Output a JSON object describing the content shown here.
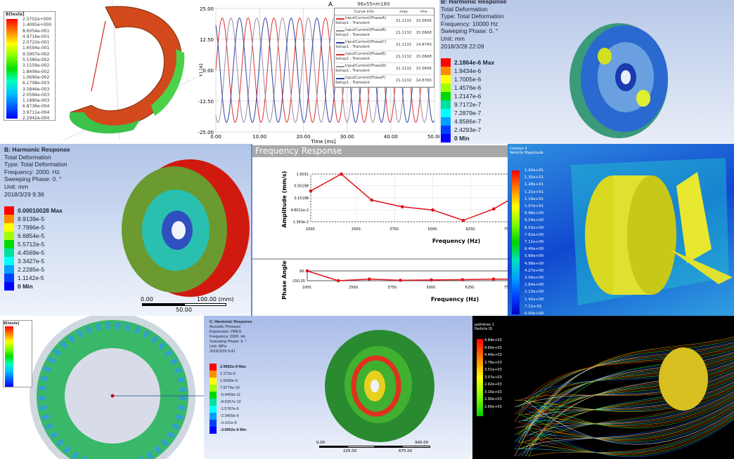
{
  "panel_magnetic": {
    "legend_title": "B[tesla]",
    "legend_values": [
      "2.5702e+000",
      "1.4095e+000",
      "8.6054e-001",
      "4.9716e-001",
      "2.0722e-001",
      "1.6594e-001",
      "9.5907e-002",
      "5.5385e-002",
      "3.1559e-002",
      "1.8406e-002",
      "1.0690e-002",
      "6.1708e-003",
      "3.5846e-003",
      "2.0594e-003",
      "1.1890e-003",
      "6.8736e-004",
      "3.9711e-004",
      "2.2942e-004"
    ]
  },
  "panel_current": {
    "title": "A",
    "project_label": "96v55nm180",
    "ylabel": "Y1 [A]",
    "xlabel": "Time [ms]",
    "table_headers": [
      "Curve Info",
      "max",
      "rms"
    ],
    "table_rows": [
      {
        "name": "InputCurrent(PhaseA)",
        "setup": "Setup1 : Transient",
        "max": "21.1132",
        "rms": "15.0606",
        "color": "#e03030"
      },
      {
        "name": "InputCurrent(PhaseB)",
        "setup": "Setup1 : Transient",
        "max": "21.1132",
        "rms": "15.0668",
        "color": "#9a8aa0"
      },
      {
        "name": "InputCurrent(PhaseC)",
        "setup": "Setup1 : Transient",
        "max": "21.1132",
        "rms": "14.8760",
        "color": "#3040a0"
      },
      {
        "name": "InputCurrent(PhaseE)",
        "setup": "Setup1 : Transient",
        "max": "21.1132",
        "rms": "15.0668",
        "color": "#e03030"
      },
      {
        "name": "InputCurrent(PhaseD)",
        "setup": "Setup1 : Transient",
        "max": "21.1132",
        "rms": "15.0606",
        "color": "#9a8aa0"
      },
      {
        "name": "InputCurrent(PhaseF)",
        "setup": "Setup1 : Transient",
        "max": "21.1132",
        "rms": "14.8760",
        "color": "#3040a0"
      }
    ]
  },
  "panel_harmonic_10k": {
    "lines": [
      "B: Harmonic Response",
      "Total Deformation",
      "Type: Total Deformation",
      "Frequency: 10000 Hz",
      "Sweeping Phase: 0. °",
      "Unit: mm",
      "2018/3/28 22:09"
    ],
    "legend_values": [
      "2.1864e-6 Max",
      "1.9434e-6",
      "1.7005e-6",
      "1.4576e-6",
      "1.2147e-6",
      "9.7172e-7",
      "7.2879e-7",
      "4.8586e-7",
      "2.4293e-7",
      "0 Min"
    ]
  },
  "panel_harmonic_2k": {
    "lines": [
      "B: Harmonic Response",
      "Total Deformation",
      "Type: Total Deformation",
      "Frequency: 2000. Hz",
      "Sweeping Phase: 0. °",
      "Unit: mm",
      "2018/3/29 9:36"
    ],
    "legend_values": [
      "0.00010028 Max",
      "8.9139e-5",
      "7.7996e-5",
      "6.6854e-5",
      "5.5712e-5",
      "4.4569e-5",
      "3.3427e-5",
      "2.2285e-5",
      "1.1142e-5",
      "0 Min"
    ],
    "scale": [
      "0.00",
      "100.00 (mm)",
      "50.00"
    ]
  },
  "panel_cfd": {
    "legend_title": [
      "Contour 2",
      "Velocity Magnitude"
    ],
    "legend_values": [
      "1.42e+01",
      "1.35e+01",
      "1.28e+01",
      "1.21e+01",
      "1.14e+01",
      "1.07e+01",
      "9.96e+00",
      "9.24e+00",
      "8.53e+00",
      "7.82e+00",
      "7.11e+00",
      "6.40e+00",
      "5.69e+00",
      "4.98e+00",
      "4.27e+00",
      "3.56e+00",
      "2.84e+00",
      "2.13e+00",
      "1.42e+00",
      "7.11e-01",
      "0.00e+00"
    ]
  },
  "panel_ring": {
    "legend_title": "B[tesla]"
  },
  "panel_acoustic": {
    "lines": [
      "C: Harmonic Response",
      "Acoustic Pressure",
      "Expression: PRES",
      "Frequency: 2000. Hz",
      "Sweeping Phase: 0. °",
      "Unit: MPa",
      "2018/3/29 9:41"
    ],
    "legend_values": [
      "2.9962e-9 Max",
      "2.272e-9",
      "1.6690e-9",
      "7.8774e-10",
      "-5.4459e-11",
      "-8.9357e-10",
      "-1.5787e-9",
      "-2.3409e-9",
      "-3.101e-9",
      "-3.9952e-9 Min"
    ],
    "scale": [
      "0.00",
      "900.00 (mm)",
      "225.00",
      "675.00"
    ]
  },
  "panel_streamlines": {
    "legend_title": [
      "pathlines 1",
      "Particle ID"
    ],
    "legend_values": [
      "4.84e+03",
      "4.60e+03",
      "4.40e+03",
      "3.76e+03",
      "3.51e+03",
      "3.07e+03",
      "2.42e+03",
      "3.16e+03",
      "2.90e+03",
      "2.60e+03"
    ]
  },
  "chart_data": [
    {
      "type": "line",
      "title": "A",
      "xlabel": "Time [ms]",
      "ylabel": "Y1 [A]",
      "xlim": [
        0,
        50
      ],
      "ylim": [
        -25,
        25
      ],
      "xticks": [
        "0.00",
        "10.00",
        "20.00",
        "30.00",
        "40.00",
        "50.00"
      ],
      "yticks": [
        "25.00",
        "12.50",
        "0.00",
        "-12.50",
        "-25.00"
      ],
      "amplitude": 21.1132,
      "period_ms": 5.9,
      "series": [
        {
          "name": "InputCurrent(PhaseA)",
          "phase_deg": 0,
          "color": "#e03030"
        },
        {
          "name": "InputCurrent(PhaseB)",
          "phase_deg": 120,
          "color": "#9a8aa0"
        },
        {
          "name": "InputCurrent(PhaseC)",
          "phase_deg": 240,
          "color": "#3040a0"
        }
      ],
      "grid": true,
      "legend": "top-right"
    },
    {
      "type": "line",
      "title": "Frequency Response",
      "xlabel": "Frequency (Hz)",
      "ylabel": "Amplitude (mm/s)",
      "yscale": "log",
      "xticks": [
        "1000.",
        "2500.",
        "3750.",
        "5000.",
        "6250.",
        "7500."
      ],
      "yticks": [
        "1.6031",
        "0.50198",
        "0.15198",
        "4.6011e-2",
        "1.393e-2"
      ],
      "xlim": [
        1000,
        7500
      ],
      "ylim": [
        0.01393,
        1.6031
      ],
      "x": [
        1000,
        2000,
        3000,
        4000,
        5000,
        6000,
        7000,
        7500
      ],
      "y": [
        0.3,
        1.6,
        0.12,
        0.062,
        0.045,
        0.016,
        0.05,
        0.12
      ],
      "color": "#e0101a",
      "grid": true
    },
    {
      "type": "line",
      "xlabel": "Frequency (Hz)",
      "ylabel": "Phase Angle",
      "xticks": [
        "1000.",
        "2500.",
        "3750.",
        "5000.",
        "6250.",
        "7500."
      ],
      "yticks": [
        "90.",
        "-150.25"
      ],
      "xlim": [
        1000,
        7500
      ],
      "ylim": [
        -150.25,
        90
      ],
      "x": [
        1000,
        2000,
        3000,
        4000,
        5000,
        6000,
        7000,
        7500
      ],
      "y": [
        90,
        -150,
        -110,
        -140,
        -130,
        -125,
        -110,
        -112
      ],
      "color": "#e0101a"
    }
  ]
}
